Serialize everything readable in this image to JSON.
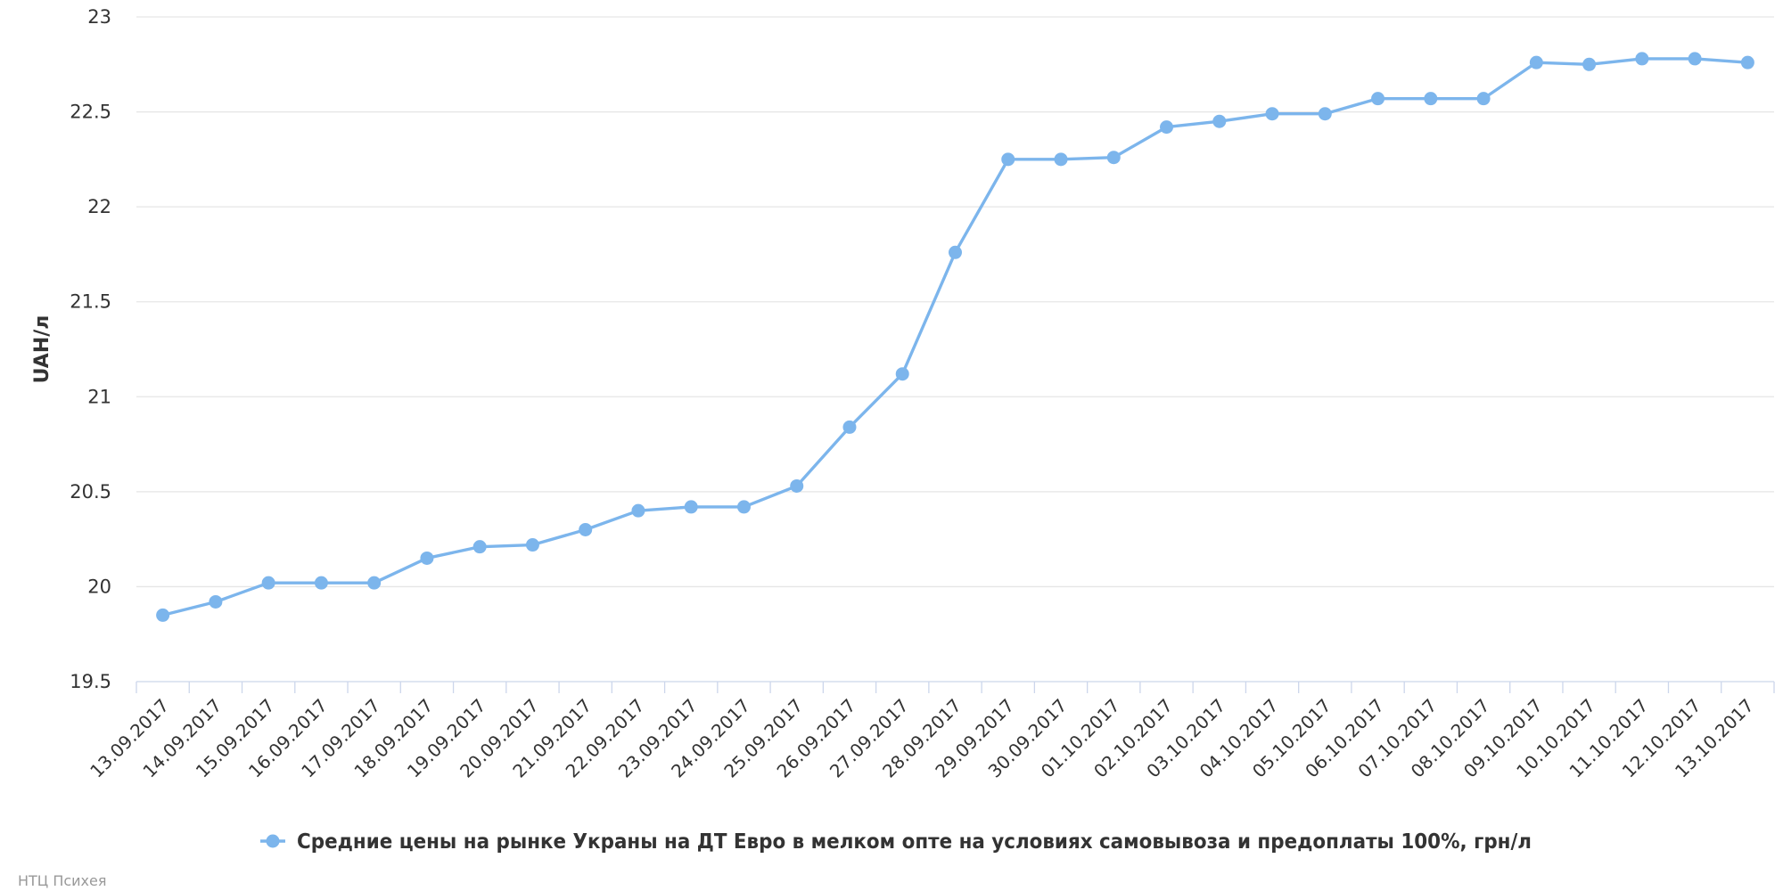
{
  "chart_data": {
    "type": "line",
    "categories": [
      "13.09.2017",
      "14.09.2017",
      "15.09.2017",
      "16.09.2017",
      "17.09.2017",
      "18.09.2017",
      "19.09.2017",
      "20.09.2017",
      "21.09.2017",
      "22.09.2017",
      "23.09.2017",
      "24.09.2017",
      "25.09.2017",
      "26.09.2017",
      "27.09.2017",
      "28.09.2017",
      "29.09.2017",
      "30.09.2017",
      "01.10.2017",
      "02.10.2017",
      "03.10.2017",
      "04.10.2017",
      "05.10.2017",
      "06.10.2017",
      "07.10.2017",
      "08.10.2017",
      "09.10.2017",
      "10.10.2017",
      "11.10.2017",
      "12.10.2017",
      "13.10.2017"
    ],
    "series": [
      {
        "name": "Средние цены на рынке Украны на ДТ Евро в мелком опте на условиях самовывоза и предоплаты 100%, грн/л",
        "color": "#7cb5ec",
        "values": [
          19.85,
          19.92,
          20.02,
          20.02,
          20.02,
          20.15,
          20.21,
          20.22,
          20.3,
          20.4,
          20.42,
          20.42,
          20.53,
          20.84,
          21.12,
          21.76,
          22.25,
          22.25,
          22.26,
          22.42,
          22.45,
          22.49,
          22.49,
          22.57,
          22.57,
          22.57,
          22.76,
          22.75,
          22.78,
          22.78,
          22.76
        ]
      }
    ],
    "title": "",
    "xlabel": "",
    "ylabel": "UAH/л",
    "ylim": [
      19.5,
      23
    ],
    "yticks": [
      "19.5",
      "20",
      "20.5",
      "21",
      "21.5",
      "22",
      "22.5",
      "23"
    ],
    "grid": true,
    "legend_position": "bottom-center",
    "credit": "НТЦ Психея"
  }
}
